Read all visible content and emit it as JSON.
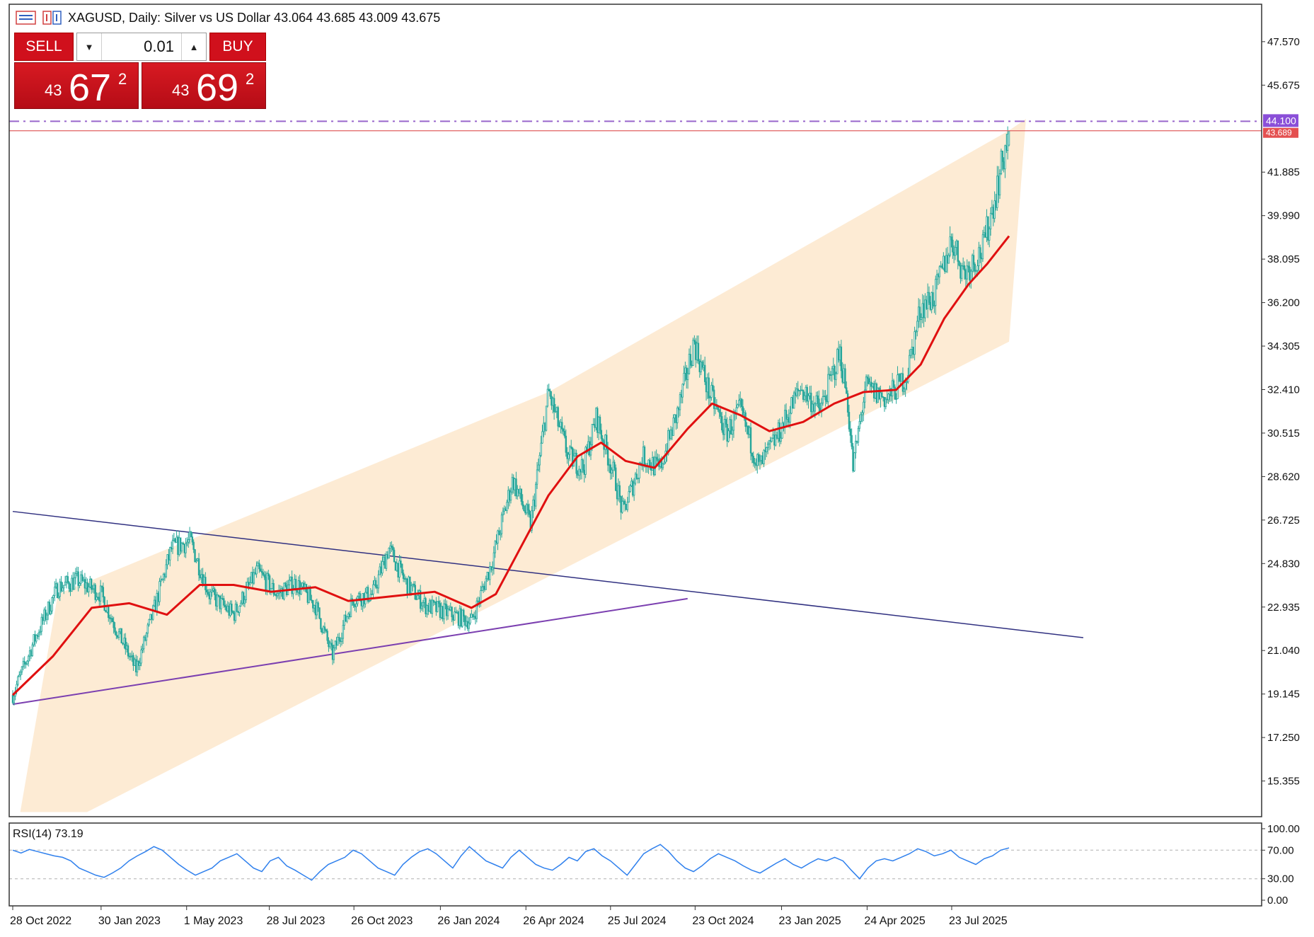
{
  "header": {
    "symbol_line": "XAGUSD, Daily:  Silver vs US Dollar  43.064 43.685 43.009 43.675"
  },
  "trade_panel": {
    "sell_label": "SELL",
    "buy_label": "BUY",
    "lot_value": "0.01",
    "sell_price_small": "43",
    "sell_price_big": "67",
    "sell_price_sup": "2",
    "buy_price_small": "43",
    "buy_price_big": "69",
    "buy_price_sup": "2"
  },
  "colors": {
    "bull": "#26a69a",
    "bear": "#26a69a",
    "ma": "#e01010",
    "channel": "#fde9cf",
    "resistance": "#9966cc",
    "bid_line": "#e06060",
    "downtrend": "#303080",
    "support": "#7b3fb0",
    "rsi": "#2f80ed"
  },
  "chart_data": [
    {
      "type": "candlestick",
      "title": "XAGUSD, Daily: Silver vs US Dollar",
      "ohlc_last": {
        "open": 43.064,
        "high": 43.685,
        "low": 43.009,
        "close": 43.675
      },
      "x_ticks": [
        "28 Oct 2022",
        "30 Jan 2023",
        "1 May 2023",
        "28 Jul 2023",
        "26 Oct 2023",
        "26 Jan 2024",
        "26 Apr 2024",
        "25 Jul 2024",
        "23 Oct 2024",
        "23 Jan 2025",
        "24 Apr 2025",
        "23 Jul 2025"
      ],
      "y_ticks": [
        "47.570",
        "45.675",
        "41.885",
        "39.990",
        "38.095",
        "36.200",
        "34.305",
        "32.410",
        "30.515",
        "28.620",
        "26.725",
        "24.830",
        "22.935",
        "21.040",
        "19.145",
        "17.250",
        "15.355"
      ],
      "y_range": [
        13.8,
        49.2
      ],
      "price_labels": {
        "resistance": "44.100",
        "bid": "43.689"
      },
      "levels": {
        "resistance": 44.1,
        "bid": 43.689
      },
      "price_path": [
        {
          "date": "2022-10-28",
          "close": 19.1
        },
        {
          "date": "2022-11-20",
          "close": 21.5
        },
        {
          "date": "2022-12-15",
          "close": 23.8
        },
        {
          "date": "2023-01-05",
          "close": 24.1
        },
        {
          "date": "2023-01-30",
          "close": 23.5
        },
        {
          "date": "2023-02-15",
          "close": 22.0
        },
        {
          "date": "2023-03-08",
          "close": 20.2
        },
        {
          "date": "2023-03-25",
          "close": 22.5
        },
        {
          "date": "2023-04-15",
          "close": 25.5
        },
        {
          "date": "2023-05-05",
          "close": 25.8
        },
        {
          "date": "2023-05-25",
          "close": 23.5
        },
        {
          "date": "2023-06-20",
          "close": 22.6
        },
        {
          "date": "2023-07-15",
          "close": 24.5
        },
        {
          "date": "2023-08-05",
          "close": 23.5
        },
        {
          "date": "2023-08-25",
          "close": 24.0
        },
        {
          "date": "2023-09-15",
          "close": 23.0
        },
        {
          "date": "2023-10-03",
          "close": 20.8
        },
        {
          "date": "2023-10-25",
          "close": 23.3
        },
        {
          "date": "2023-11-15",
          "close": 23.5
        },
        {
          "date": "2023-12-02",
          "close": 25.5
        },
        {
          "date": "2023-12-20",
          "close": 24.0
        },
        {
          "date": "2024-01-10",
          "close": 23.0
        },
        {
          "date": "2024-02-01",
          "close": 22.7
        },
        {
          "date": "2024-02-28",
          "close": 22.3
        },
        {
          "date": "2024-03-20",
          "close": 24.8
        },
        {
          "date": "2024-04-12",
          "close": 28.5
        },
        {
          "date": "2024-05-01",
          "close": 26.5
        },
        {
          "date": "2024-05-20",
          "close": 32.3
        },
        {
          "date": "2024-06-10",
          "close": 29.5
        },
        {
          "date": "2024-06-26",
          "close": 29.0
        },
        {
          "date": "2024-07-10",
          "close": 31.2
        },
        {
          "date": "2024-07-30",
          "close": 28.5
        },
        {
          "date": "2024-08-07",
          "close": 27.0
        },
        {
          "date": "2024-08-28",
          "close": 29.5
        },
        {
          "date": "2024-09-15",
          "close": 28.9
        },
        {
          "date": "2024-10-05",
          "close": 31.5
        },
        {
          "date": "2024-10-22",
          "close": 34.5
        },
        {
          "date": "2024-11-05",
          "close": 32.5
        },
        {
          "date": "2024-11-25",
          "close": 30.5
        },
        {
          "date": "2024-12-10",
          "close": 31.5
        },
        {
          "date": "2024-12-30",
          "close": 29.0
        },
        {
          "date": "2025-01-20",
          "close": 30.5
        },
        {
          "date": "2025-02-12",
          "close": 32.5
        },
        {
          "date": "2025-03-05",
          "close": 31.5
        },
        {
          "date": "2025-03-26",
          "close": 34.0
        },
        {
          "date": "2025-04-03",
          "close": 32.0
        },
        {
          "date": "2025-04-09",
          "close": 29.0
        },
        {
          "date": "2025-04-22",
          "close": 32.5
        },
        {
          "date": "2025-05-15",
          "close": 32.0
        },
        {
          "date": "2025-06-05",
          "close": 33.0
        },
        {
          "date": "2025-06-20",
          "close": 36.0
        },
        {
          "date": "2025-07-05",
          "close": 36.5
        },
        {
          "date": "2025-07-23",
          "close": 39.0
        },
        {
          "date": "2025-08-05",
          "close": 37.5
        },
        {
          "date": "2025-08-25",
          "close": 38.5
        },
        {
          "date": "2025-09-08",
          "close": 41.0
        },
        {
          "date": "2025-09-22",
          "close": 43.675
        }
      ],
      "moving_average": [
        {
          "date": "2022-10-28",
          "value": 19.1
        },
        {
          "date": "2022-12-10",
          "value": 20.8
        },
        {
          "date": "2023-01-20",
          "value": 22.9
        },
        {
          "date": "2023-03-01",
          "value": 23.1
        },
        {
          "date": "2023-04-10",
          "value": 22.6
        },
        {
          "date": "2023-05-15",
          "value": 23.9
        },
        {
          "date": "2023-06-20",
          "value": 23.9
        },
        {
          "date": "2023-07-30",
          "value": 23.6
        },
        {
          "date": "2023-09-15",
          "value": 23.8
        },
        {
          "date": "2023-10-20",
          "value": 23.2
        },
        {
          "date": "2023-12-05",
          "value": 23.4
        },
        {
          "date": "2024-01-20",
          "value": 23.6
        },
        {
          "date": "2024-02-28",
          "value": 22.9
        },
        {
          "date": "2024-03-25",
          "value": 23.5
        },
        {
          "date": "2024-04-20",
          "value": 25.5
        },
        {
          "date": "2024-05-20",
          "value": 27.8
        },
        {
          "date": "2024-06-20",
          "value": 29.5
        },
        {
          "date": "2024-07-15",
          "value": 30.1
        },
        {
          "date": "2024-08-10",
          "value": 29.3
        },
        {
          "date": "2024-09-10",
          "value": 29.0
        },
        {
          "date": "2024-10-15",
          "value": 30.7
        },
        {
          "date": "2024-11-10",
          "value": 31.8
        },
        {
          "date": "2024-12-10",
          "value": 31.3
        },
        {
          "date": "2025-01-10",
          "value": 30.6
        },
        {
          "date": "2025-02-15",
          "value": 31.0
        },
        {
          "date": "2025-03-20",
          "value": 31.8
        },
        {
          "date": "2025-04-20",
          "value": 32.3
        },
        {
          "date": "2025-05-25",
          "value": 32.4
        },
        {
          "date": "2025-06-20",
          "value": 33.5
        },
        {
          "date": "2025-07-15",
          "value": 35.5
        },
        {
          "date": "2025-08-10",
          "value": 37.0
        },
        {
          "date": "2025-08-30",
          "value": 37.9
        },
        {
          "date": "2025-09-22",
          "value": 39.1
        }
      ],
      "channel": [
        {
          "date": "2022-11-05",
          "value": 14.0
        },
        {
          "date": "2022-12-15",
          "value": 23.5
        },
        {
          "date": "2024-05-20",
          "value": 32.3
        },
        {
          "date": "2025-09-22",
          "value": 43.7
        },
        {
          "date": "2025-10-10",
          "value": 44.2
        },
        {
          "date": "2025-09-22",
          "value": 34.5
        },
        {
          "date": "2023-01-15",
          "value": 14.0
        }
      ],
      "support_line": [
        {
          "date": "2022-10-28",
          "value": 18.7
        },
        {
          "date": "2024-10-15",
          "value": 23.3
        }
      ],
      "downtrend_line": [
        {
          "date": "2022-10-28",
          "value": 27.1
        },
        {
          "date": "2025-12-10",
          "value": 21.6
        }
      ]
    },
    {
      "type": "line",
      "title": "RSI(14) 73.19",
      "y_ticks": [
        "100.00",
        "70.00",
        "30.00",
        "0.00"
      ],
      "y_range": [
        0,
        100
      ],
      "levels": [
        70,
        30
      ],
      "series": [
        {
          "name": "RSI(14)",
          "values": [
            70,
            66,
            71,
            68,
            65,
            62,
            60,
            55,
            45,
            40,
            35,
            32,
            38,
            45,
            55,
            62,
            68,
            75,
            70,
            60,
            50,
            42,
            35,
            40,
            45,
            55,
            60,
            65,
            55,
            45,
            40,
            55,
            60,
            48,
            42,
            35,
            28,
            40,
            50,
            55,
            60,
            70,
            65,
            55,
            45,
            40,
            35,
            50,
            60,
            68,
            72,
            65,
            55,
            45,
            62,
            75,
            65,
            55,
            50,
            45,
            60,
            70,
            60,
            50,
            45,
            42,
            50,
            60,
            55,
            68,
            72,
            62,
            55,
            45,
            35,
            50,
            65,
            72,
            78,
            68,
            55,
            45,
            40,
            48,
            58,
            65,
            60,
            55,
            48,
            42,
            38,
            45,
            52,
            58,
            50,
            45,
            52,
            58,
            55,
            60,
            55,
            42,
            30,
            45,
            55,
            58,
            55,
            60,
            65,
            72,
            68,
            62,
            65,
            70,
            60,
            55,
            50,
            58,
            62,
            70,
            73.19
          ]
        }
      ]
    }
  ]
}
